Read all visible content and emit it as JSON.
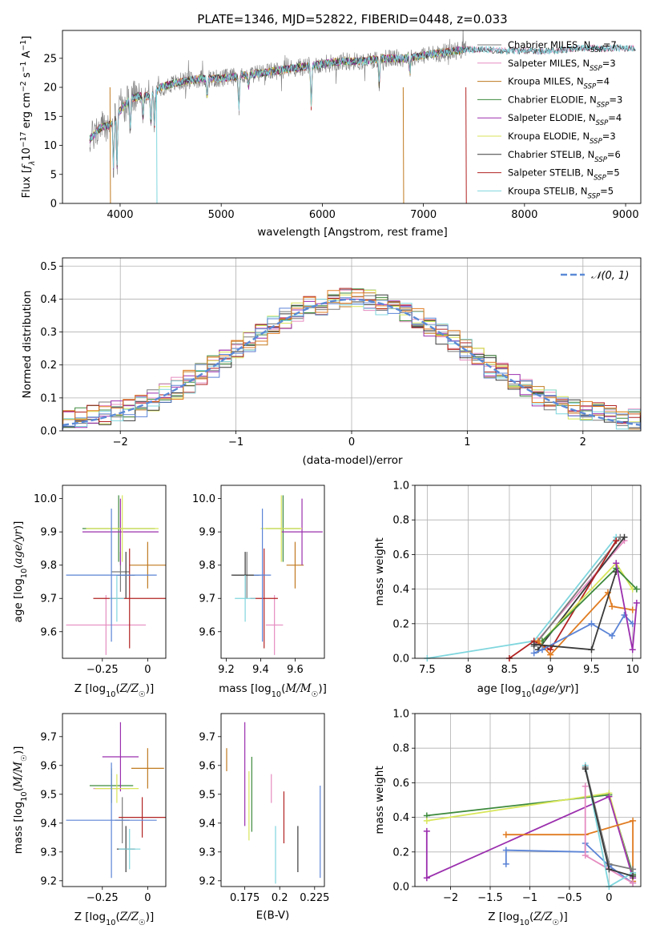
{
  "figure": {
    "title": "PLATE=1346, MJD=52822, FIBERID=0448, z=0.033"
  },
  "colors": {
    "Chabrier MILES": "#7a7a7a",
    "Salpeter MILES": "#e58cc0",
    "Kroupa MILES": "#c07a20",
    "Chabrier ELODIE": "#3d8a3d",
    "Salpeter ELODIE": "#9b2fae",
    "Kroupa ELODIE": "#d8e65a",
    "Chabrier STELIB": "#3a3a3a",
    "Salpeter STELIB": "#b22222",
    "Kroupa STELIB": "#7fd6de",
    "blue": "#5b84d6",
    "orange": "#e07b20"
  },
  "chart_data": [
    {
      "id": "spectrum",
      "type": "line",
      "title": "PLATE=1346, MJD=52822, FIBERID=0448, z=0.033",
      "xlabel": "wavelength [Angstrom, rest frame]",
      "ylabel": "Flux [f_λ 10^-17 erg cm^-2 s^-1 A^-1]",
      "xlim": [
        3430,
        9150
      ],
      "ylim": [
        0,
        29.8
      ],
      "xticks": [
        4000,
        5000,
        6000,
        7000,
        8000,
        9000
      ],
      "yticks": [
        0,
        5,
        10,
        15,
        20,
        25
      ],
      "legend_position": "top-right",
      "series": [
        {
          "name": "Chabrier MILES, N_SSP=7"
        },
        {
          "name": "Salpeter MILES, N_SSP=3"
        },
        {
          "name": "Kroupa MILES, N_SSP=4"
        },
        {
          "name": "Chabrier ELODIE, N_SSP=3"
        },
        {
          "name": "Salpeter ELODIE, N_SSP=4"
        },
        {
          "name": "Kroupa ELODIE, N_SSP=3"
        },
        {
          "name": "Chabrier STELIB, N_SSP=6"
        },
        {
          "name": "Salpeter STELIB, N_SSP=5"
        },
        {
          "name": "Kroupa STELIB, N_SSP=5"
        }
      ],
      "continuum": {
        "x": [
          3700,
          3800,
          3900,
          4000,
          4100,
          4200,
          4300,
          4400,
          4600,
          4800,
          5000,
          5200,
          5400,
          5600,
          5800,
          6000,
          6200,
          6400,
          6600,
          6800,
          7000,
          7200,
          7400
        ],
        "y": [
          11,
          13,
          13.5,
          16,
          18,
          18.5,
          18.5,
          20,
          21,
          21.5,
          21.5,
          22,
          22.5,
          23,
          23.5,
          24,
          24.5,
          24.5,
          25,
          25,
          25.5,
          26,
          26.5
        ]
      },
      "model_extension": {
        "x": [
          7400,
          7600,
          7800,
          8000,
          8200,
          8400,
          8600,
          8800,
          9000,
          9100
        ],
        "y": [
          26.5,
          26.5,
          26.3,
          26.3,
          26.2,
          26.5,
          26.8,
          26.7,
          26.8,
          26.8
        ]
      }
    },
    {
      "id": "residuals",
      "type": "line",
      "xlabel": "(data-model)/error",
      "ylabel": "Normed distribution",
      "xlim": [
        -2.5,
        2.5
      ],
      "ylim": [
        0,
        0.525
      ],
      "xticks": [
        -2,
        -1,
        0,
        1,
        2
      ],
      "yticks": [
        0.0,
        0.1,
        0.2,
        0.3,
        0.4,
        0.5
      ],
      "grid": true,
      "legend_position": "top-right",
      "reference": {
        "name": "𝒩(0, 1)",
        "mean": 0,
        "sigma": 1
      }
    },
    {
      "id": "age_vs_Z",
      "type": "scatter",
      "xlabel": "Z [log10(Z/Z☉)]",
      "ylabel": "age  [log10(age/yr)]",
      "xlim": [
        -0.47,
        0.1
      ],
      "ylim": [
        9.52,
        10.04
      ],
      "xticks": [
        -0.25,
        0.0
      ],
      "yticks": [
        9.6,
        9.7,
        9.8,
        9.9,
        10.0
      ],
      "points": [
        {
          "series": "Chabrier MILES",
          "x": -0.15,
          "y": 9.78,
          "xerr": 0.05,
          "yerr": 0.06
        },
        {
          "series": "Salpeter MILES",
          "x": -0.23,
          "y": 9.62,
          "xerr": 0.22,
          "yerr": 0.09
        },
        {
          "series": "Kroupa MILES",
          "x": 0.0,
          "y": 9.8,
          "xerr": 0.1,
          "yerr": 0.07
        },
        {
          "series": "Chabrier ELODIE",
          "x": -0.16,
          "y": 9.91,
          "xerr": 0.2,
          "yerr": 0.1
        },
        {
          "series": "Salpeter ELODIE",
          "x": -0.15,
          "y": 9.9,
          "xerr": 0.21,
          "yerr": 0.1
        },
        {
          "series": "Kroupa ELODIE",
          "x": -0.14,
          "y": 9.91,
          "xerr": 0.2,
          "yerr": 0.1
        },
        {
          "series": "Chabrier STELIB",
          "x": -0.12,
          "y": 9.77,
          "xerr": 0.05,
          "yerr": 0.07
        },
        {
          "series": "Salpeter STELIB",
          "x": -0.1,
          "y": 9.7,
          "xerr": 0.2,
          "yerr": 0.15
        },
        {
          "series": "Kroupa STELIB",
          "x": -0.17,
          "y": 9.7,
          "xerr": 0.04,
          "yerr": 0.07
        },
        {
          "series": "blue",
          "x": -0.2,
          "y": 9.77,
          "xerr": 0.25,
          "yerr": 0.2
        }
      ]
    },
    {
      "id": "age_vs_mass",
      "type": "scatter",
      "xlabel": "mass [log10(M/M☉)]",
      "ylabel": "",
      "xlim": [
        9.17,
        9.77
      ],
      "ylim": [
        9.52,
        10.04
      ],
      "xticks": [
        9.2,
        9.4,
        9.6
      ],
      "yticks": [
        9.6,
        9.7,
        9.8,
        9.9,
        10.0
      ],
      "points": [
        {
          "series": "Chabrier MILES",
          "x": 9.32,
          "y": 9.77,
          "xerr": 0.08,
          "yerr": 0.07
        },
        {
          "series": "Salpeter MILES",
          "x": 9.48,
          "y": 9.62,
          "xerr": 0.05,
          "yerr": 0.09
        },
        {
          "series": "Kroupa MILES",
          "x": 9.6,
          "y": 9.8,
          "xerr": 0.05,
          "yerr": 0.07
        },
        {
          "series": "Chabrier ELODIE",
          "x": 9.53,
          "y": 9.91,
          "xerr": 0.1,
          "yerr": 0.1
        },
        {
          "series": "Salpeter ELODIE",
          "x": 9.64,
          "y": 9.9,
          "xerr": 0.12,
          "yerr": 0.1
        },
        {
          "series": "Kroupa ELODIE",
          "x": 9.52,
          "y": 9.91,
          "xerr": 0.12,
          "yerr": 0.1
        },
        {
          "series": "Chabrier STELIB",
          "x": 9.31,
          "y": 9.77,
          "xerr": 0.08,
          "yerr": 0.07
        },
        {
          "series": "Salpeter STELIB",
          "x": 9.42,
          "y": 9.7,
          "xerr": 0.08,
          "yerr": 0.15
        },
        {
          "series": "Kroupa STELIB",
          "x": 9.31,
          "y": 9.7,
          "xerr": 0.06,
          "yerr": 0.07
        },
        {
          "series": "blue",
          "x": 9.41,
          "y": 9.77,
          "xerr": 0.05,
          "yerr": 0.2
        }
      ]
    },
    {
      "id": "weight_vs_age",
      "type": "line",
      "xlabel": "age  [log10(age/yr)]",
      "ylabel": "mass weight",
      "xlim": [
        7.35,
        10.1
      ],
      "ylim": [
        0,
        1.0
      ],
      "xticks": [
        7.5,
        8.0,
        8.5,
        9.0,
        9.5,
        10.0
      ],
      "yticks": [
        0.0,
        0.2,
        0.4,
        0.6,
        0.8,
        1.0
      ],
      "grid": true,
      "series": [
        {
          "name": "Kroupa STELIB",
          "x": [
            7.5,
            8.8,
            9.8
          ],
          "y": [
            0.0,
            0.1,
            0.7
          ]
        },
        {
          "name": "Salpeter MILES",
          "x": [
            8.8,
            9.9
          ],
          "y": [
            0.08,
            0.68
          ]
        },
        {
          "name": "Chabrier MILES",
          "x": [
            8.8,
            9.85
          ],
          "y": [
            0.07,
            0.7
          ]
        },
        {
          "name": "Chabrier STELIB",
          "x": [
            8.85,
            9.9
          ],
          "y": [
            0.05,
            0.7
          ]
        },
        {
          "name": "Salpeter STELIB",
          "x": [
            8.5,
            8.8,
            9.0,
            9.8
          ],
          "y": [
            0.0,
            0.1,
            0.05,
            0.68
          ]
        },
        {
          "name": "Kroupa ELODIE",
          "x": [
            8.9,
            9.8,
            10.0
          ],
          "y": [
            0.1,
            0.55,
            0.4
          ]
        },
        {
          "name": "Chabrier ELODIE",
          "x": [
            8.9,
            9.8,
            10.05
          ],
          "y": [
            0.1,
            0.52,
            0.4
          ]
        },
        {
          "name": "orange",
          "x": [
            8.85,
            9.0,
            9.7,
            9.75,
            10.0
          ],
          "y": [
            0.1,
            0.02,
            0.38,
            0.3,
            0.28
          ]
        },
        {
          "name": "blue",
          "x": [
            8.8,
            8.9,
            9.5,
            9.75,
            9.9,
            10.0
          ],
          "y": [
            0.03,
            0.05,
            0.2,
            0.13,
            0.25,
            0.2
          ]
        },
        {
          "name": "Chabrier STELIB",
          "x": [
            8.8,
            9.5,
            9.8
          ],
          "y": [
            0.08,
            0.05,
            0.5
          ]
        },
        {
          "name": "Salpeter ELODIE",
          "x": [
            9.8,
            10.0,
            10.05
          ],
          "y": [
            0.55,
            0.05,
            0.32
          ]
        }
      ]
    },
    {
      "id": "mass_vs_Z",
      "type": "scatter",
      "xlabel": "Z [log10(Z/Z☉)]",
      "ylabel": "mass [log10(M/M☉)]",
      "xlim": [
        -0.47,
        0.1
      ],
      "ylim": [
        9.18,
        9.78
      ],
      "xticks": [
        -0.25,
        0.0
      ],
      "yticks": [
        9.2,
        9.3,
        9.4,
        9.5,
        9.6,
        9.7
      ],
      "points": [
        {
          "series": "Chabrier MILES",
          "x": -0.14,
          "y": 9.41,
          "xerr": 0.04,
          "yerr": 0.08
        },
        {
          "series": "Salpeter MILES",
          "x": -0.2,
          "y": 9.52,
          "xerr": 0.1,
          "yerr": 0.05
        },
        {
          "series": "Kroupa MILES",
          "x": 0.0,
          "y": 9.59,
          "xerr": 0.09,
          "yerr": 0.07
        },
        {
          "series": "Chabrier ELODIE",
          "x": -0.2,
          "y": 9.53,
          "xerr": 0.12,
          "yerr": 0.06
        },
        {
          "series": "Salpeter ELODIE",
          "x": -0.15,
          "y": 9.63,
          "xerr": 0.1,
          "yerr": 0.12
        },
        {
          "series": "Kroupa ELODIE",
          "x": -0.17,
          "y": 9.52,
          "xerr": 0.12,
          "yerr": 0.05
        },
        {
          "series": "Chabrier STELIB",
          "x": -0.12,
          "y": 9.31,
          "xerr": 0.05,
          "yerr": 0.08
        },
        {
          "series": "Salpeter STELIB",
          "x": -0.03,
          "y": 9.42,
          "xerr": 0.13,
          "yerr": 0.07
        },
        {
          "series": "Kroupa STELIB",
          "x": -0.1,
          "y": 9.31,
          "xerr": 0.06,
          "yerr": 0.07
        },
        {
          "series": "blue",
          "x": -0.2,
          "y": 9.41,
          "xerr": 0.25,
          "yerr": 0.2
        }
      ]
    },
    {
      "id": "mass_vs_ebv",
      "type": "scatter",
      "xlabel": "E(B-V)",
      "ylabel": "",
      "xlim": [
        0.158,
        0.232
      ],
      "ylim": [
        9.18,
        9.78
      ],
      "xticks": [
        0.175,
        0.2,
        0.225
      ],
      "yticks": [
        9.2,
        9.3,
        9.4,
        9.5,
        9.6,
        9.7
      ],
      "points": [
        {
          "series": "Kroupa MILES",
          "x": 0.162,
          "y": 9.62,
          "yerr": 0.04
        },
        {
          "series": "Salpeter ELODIE",
          "x": 0.175,
          "y": 9.57,
          "yerr": 0.18
        },
        {
          "series": "Kroupa ELODIE",
          "x": 0.178,
          "y": 9.46,
          "yerr": 0.12
        },
        {
          "series": "Chabrier ELODIE",
          "x": 0.18,
          "y": 9.5,
          "yerr": 0.13
        },
        {
          "series": "Salpeter MILES",
          "x": 0.194,
          "y": 9.52,
          "yerr": 0.05
        },
        {
          "series": "Kroupa STELIB",
          "x": 0.197,
          "y": 9.29,
          "yerr": 0.1
        },
        {
          "series": "Salpeter STELIB",
          "x": 0.203,
          "y": 9.42,
          "yerr": 0.09
        },
        {
          "series": "Chabrier STELIB",
          "x": 0.213,
          "y": 9.31,
          "yerr": 0.08
        },
        {
          "series": "blue",
          "x": 0.229,
          "y": 9.37,
          "yerr": 0.16
        }
      ]
    },
    {
      "id": "weight_vs_Z",
      "type": "line",
      "xlabel": "Z [log10(Z/Z☉)]",
      "ylabel": "mass weight",
      "xlim": [
        -2.45,
        0.4
      ],
      "ylim": [
        0,
        1.0
      ],
      "xticks": [
        -2.0,
        -1.5,
        -1.0,
        -0.5,
        0.0
      ],
      "yticks": [
        0.0,
        0.2,
        0.4,
        0.6,
        0.8,
        1.0
      ],
      "grid": true,
      "series": [
        {
          "name": "Chabrier ELODIE",
          "x": [
            -2.3,
            0.0,
            0.3
          ],
          "y": [
            0.41,
            0.53,
            0.07
          ]
        },
        {
          "name": "Kroupa ELODIE",
          "x": [
            -2.3,
            0.0,
            0.3
          ],
          "y": [
            0.38,
            0.54,
            0.05
          ]
        },
        {
          "name": "Salpeter ELODIE",
          "x": [
            -2.3,
            -2.3,
            0.0,
            0.3
          ],
          "y": [
            0.32,
            0.05,
            0.52,
            0.05
          ]
        },
        {
          "name": "orange",
          "x": [
            -1.3,
            -0.3,
            0.3,
            0.3
          ],
          "y": [
            0.3,
            0.3,
            0.38,
            0.03
          ]
        },
        {
          "name": "blue",
          "x": [
            -1.3,
            -1.3,
            -0.3,
            -0.3,
            0.0,
            0.3
          ],
          "y": [
            0.13,
            0.21,
            0.2,
            0.25,
            0.12,
            0.02
          ]
        },
        {
          "name": "Salpeter MILES",
          "x": [
            -0.3,
            -0.3,
            0.3
          ],
          "y": [
            0.58,
            0.18,
            0.02
          ]
        },
        {
          "name": "Kroupa STELIB",
          "x": [
            -0.3,
            0.0,
            0.3
          ],
          "y": [
            0.7,
            0.0,
            0.08
          ]
        },
        {
          "name": "Chabrier MILES",
          "x": [
            -0.3,
            0.0,
            0.3
          ],
          "y": [
            0.69,
            0.13,
            0.1
          ]
        },
        {
          "name": "Chabrier STELIB",
          "x": [
            -0.3,
            0.0,
            0.3
          ],
          "y": [
            0.68,
            0.1,
            0.06
          ]
        }
      ]
    }
  ]
}
